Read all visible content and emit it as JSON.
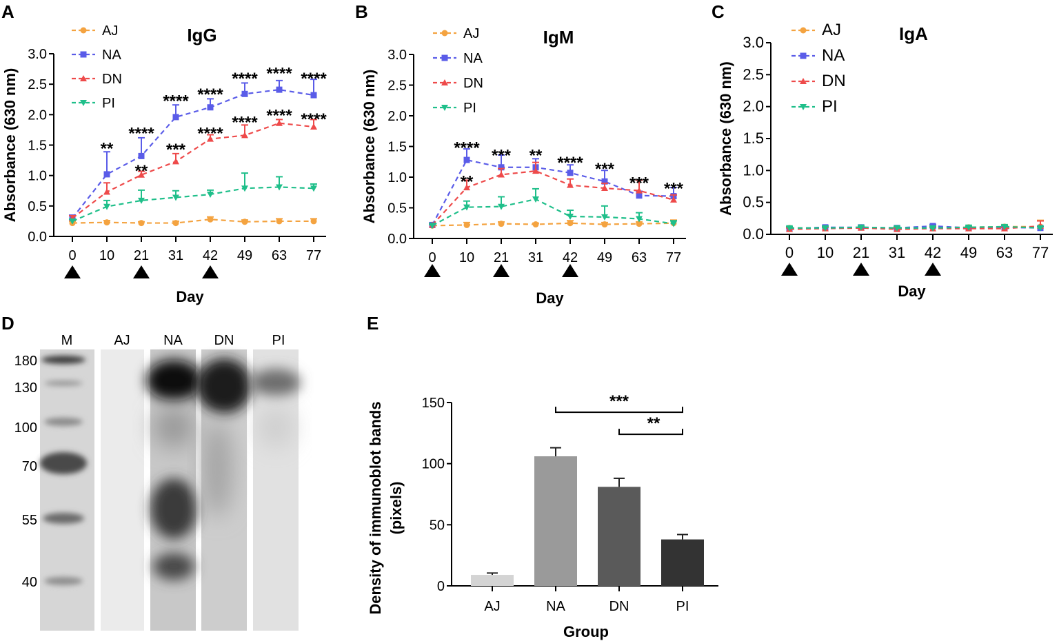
{
  "panels": {
    "A": "A",
    "B": "B",
    "C": "C",
    "D": "D",
    "E": "E"
  },
  "colors": {
    "AJ": "#f4a340",
    "NA": "#5a5ce8",
    "DN": "#ee4a4a",
    "PI": "#1fbf8a"
  },
  "chart_data": [
    {
      "type": "line",
      "panel": "A",
      "title": "IgG",
      "xlabel": "Day",
      "ylabel": "Absorbance (630 nm)",
      "ylim": [
        0,
        3.0
      ],
      "yticks": [
        "0.0",
        "0.5",
        "1.0",
        "1.5",
        "2.0",
        "2.5",
        "3.0"
      ],
      "categories": [
        "0",
        "10",
        "21",
        "31",
        "42",
        "49",
        "63",
        "77"
      ],
      "immunization_days": [
        0,
        2,
        4
      ],
      "series": [
        {
          "name": "AJ",
          "values": [
            0.22,
            0.23,
            0.22,
            0.22,
            0.28,
            0.24,
            0.25,
            0.25
          ],
          "errors": [
            0.03,
            0.03,
            0.02,
            0.03,
            0.04,
            0.03,
            0.04,
            0.04
          ]
        },
        {
          "name": "NA",
          "values": [
            0.3,
            1.02,
            1.32,
            1.96,
            2.12,
            2.34,
            2.41,
            2.32
          ],
          "errors": [
            0.05,
            0.37,
            0.3,
            0.2,
            0.14,
            0.18,
            0.15,
            0.26
          ]
        },
        {
          "name": "DN",
          "values": [
            0.3,
            0.73,
            1.01,
            1.23,
            1.6,
            1.66,
            1.86,
            1.8
          ],
          "errors": [
            0.04,
            0.15,
            0.06,
            0.13,
            0.07,
            0.17,
            0.06,
            0.12
          ]
        },
        {
          "name": "PI",
          "values": [
            0.25,
            0.49,
            0.59,
            0.64,
            0.69,
            0.79,
            0.81,
            0.79
          ],
          "errors": [
            0.03,
            0.1,
            0.17,
            0.11,
            0.07,
            0.25,
            0.17,
            0.07
          ]
        }
      ],
      "annotations": [
        {
          "x": 1,
          "y": 1.49,
          "text": "**"
        },
        {
          "x": 2,
          "y": 1.74,
          "text": "****"
        },
        {
          "x": 2,
          "y": 1.12,
          "text": "**"
        },
        {
          "x": 3,
          "y": 2.27,
          "text": "****"
        },
        {
          "x": 3,
          "y": 1.47,
          "text": "***"
        },
        {
          "x": 4,
          "y": 2.38,
          "text": "****"
        },
        {
          "x": 4,
          "y": 1.74,
          "text": "****"
        },
        {
          "x": 5,
          "y": 2.64,
          "text": "****"
        },
        {
          "x": 5,
          "y": 1.92,
          "text": "****"
        },
        {
          "x": 6,
          "y": 2.72,
          "text": "****"
        },
        {
          "x": 6,
          "y": 2.03,
          "text": "****"
        },
        {
          "x": 7,
          "y": 2.64,
          "text": "****"
        },
        {
          "x": 7,
          "y": 1.97,
          "text": "****"
        }
      ]
    },
    {
      "type": "line",
      "panel": "B",
      "title": "IgM",
      "xlabel": "Day",
      "ylabel": "Absorbance (630 nm)",
      "ylim": [
        0,
        3.0
      ],
      "yticks": [
        "0.0",
        "0.5",
        "1.0",
        "1.5",
        "2.0",
        "2.5",
        "3.0"
      ],
      "categories": [
        "0",
        "10",
        "21",
        "31",
        "42",
        "49",
        "63",
        "77"
      ],
      "immunization_days": [
        0,
        2,
        4
      ],
      "series": [
        {
          "name": "AJ",
          "values": [
            0.21,
            0.22,
            0.24,
            0.23,
            0.25,
            0.23,
            0.24,
            0.25
          ],
          "errors": [
            0.02,
            0.04,
            0.03,
            0.02,
            0.04,
            0.03,
            0.03,
            0.05
          ]
        },
        {
          "name": "NA",
          "values": [
            0.22,
            1.28,
            1.16,
            1.16,
            1.07,
            0.93,
            0.7,
            0.69
          ],
          "errors": [
            0.03,
            0.18,
            0.2,
            0.14,
            0.13,
            0.18,
            0.07,
            0.14
          ]
        },
        {
          "name": "DN",
          "values": [
            0.22,
            0.83,
            1.04,
            1.1,
            0.87,
            0.82,
            0.78,
            0.63
          ],
          "errors": [
            0.02,
            0.12,
            0.1,
            0.14,
            0.1,
            0.08,
            0.17,
            0.08
          ]
        },
        {
          "name": "PI",
          "values": [
            0.21,
            0.51,
            0.52,
            0.64,
            0.36,
            0.35,
            0.32,
            0.24
          ],
          "errors": [
            0.02,
            0.1,
            0.16,
            0.17,
            0.1,
            0.18,
            0.1,
            0.05
          ]
        }
      ],
      "annotations": [
        {
          "x": 1,
          "y": 1.52,
          "text": "****"
        },
        {
          "x": 1,
          "y": 0.97,
          "text": "**"
        },
        {
          "x": 2,
          "y": 1.4,
          "text": "***"
        },
        {
          "x": 3,
          "y": 1.4,
          "text": "**"
        },
        {
          "x": 4,
          "y": 1.28,
          "text": "****"
        },
        {
          "x": 5,
          "y": 1.18,
          "text": "***"
        },
        {
          "x": 6,
          "y": 0.95,
          "text": "***"
        },
        {
          "x": 7,
          "y": 0.86,
          "text": "***"
        }
      ]
    },
    {
      "type": "line",
      "panel": "C",
      "title": "IgA",
      "xlabel": "Day",
      "ylabel": "Absorbance (630 nm)",
      "ylim": [
        0,
        3.0
      ],
      "yticks": [
        "0.0",
        "0.5",
        "1.0",
        "1.5",
        "2.0",
        "2.5",
        "3.0"
      ],
      "categories": [
        "0",
        "10",
        "21",
        "31",
        "42",
        "49",
        "63",
        "77"
      ],
      "immunization_days": [
        0,
        2,
        4
      ],
      "series": [
        {
          "name": "AJ",
          "values": [
            0.1,
            0.1,
            0.11,
            0.09,
            0.11,
            0.11,
            0.12,
            0.12
          ],
          "errors": [
            0.02,
            0.02,
            0.02,
            0.02,
            0.02,
            0.02,
            0.03,
            0.1
          ]
        },
        {
          "name": "NA",
          "values": [
            0.09,
            0.11,
            0.11,
            0.1,
            0.13,
            0.1,
            0.11,
            0.1
          ],
          "errors": [
            0.02,
            0.02,
            0.02,
            0.02,
            0.02,
            0.02,
            0.02,
            0.02
          ]
        },
        {
          "name": "DN",
          "values": [
            0.08,
            0.09,
            0.1,
            0.08,
            0.09,
            0.09,
            0.09,
            0.13
          ],
          "errors": [
            0.02,
            0.02,
            0.02,
            0.02,
            0.02,
            0.02,
            0.02,
            0.08
          ]
        },
        {
          "name": "PI",
          "values": [
            0.1,
            0.1,
            0.11,
            0.1,
            0.1,
            0.11,
            0.12,
            0.1
          ],
          "errors": [
            0.02,
            0.02,
            0.02,
            0.02,
            0.02,
            0.02,
            0.02,
            0.02
          ]
        }
      ],
      "annotations": []
    },
    {
      "type": "bar",
      "panel": "E",
      "title": "",
      "xlabel": "Group",
      "ylabel_lines": [
        "Density of immunoblot bands",
        "(pixels)"
      ],
      "ylim": [
        0,
        150
      ],
      "yticks": [
        "0",
        "50",
        "100",
        "150"
      ],
      "categories": [
        "AJ",
        "NA",
        "DN",
        "PI"
      ],
      "values": [
        9,
        106,
        81,
        38
      ],
      "errors": [
        1.5,
        7,
        7,
        4
      ],
      "bar_colors": [
        "#d4d4d4",
        "#9a9a9a",
        "#5a5a5a",
        "#333333"
      ],
      "brackets": [
        {
          "from": 1,
          "to": 3,
          "y": 142,
          "text": "***"
        },
        {
          "from": 2,
          "to": 3,
          "y": 124,
          "text": "**"
        }
      ]
    }
  ],
  "blot": {
    "lane_labels": [
      "M",
      "AJ",
      "NA",
      "DN",
      "PI"
    ],
    "marker_labels": [
      "180",
      "130",
      "100",
      "70",
      "55",
      "40"
    ],
    "marker_kda": [
      180,
      130,
      100,
      70,
      55,
      40
    ]
  }
}
